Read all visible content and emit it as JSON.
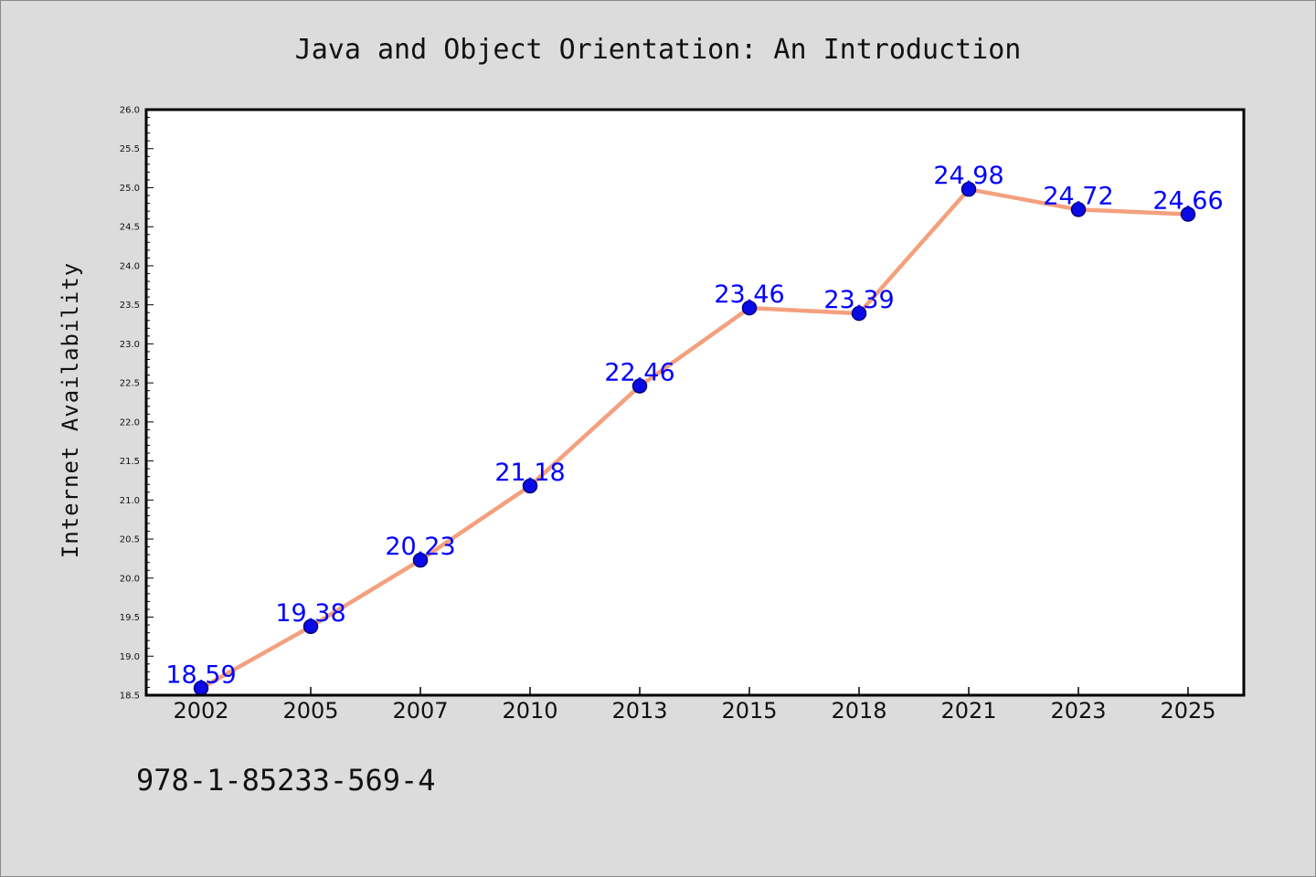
{
  "page": {
    "isbn": "978-1-85233-569-4"
  },
  "chart_data": {
    "type": "line",
    "title": "Java and Object Orientation: An Introduction",
    "xlabel": "",
    "ylabel": "Internet Availability",
    "categories": [
      "2002",
      "2005",
      "2007",
      "2010",
      "2013",
      "2015",
      "2018",
      "2021",
      "2023",
      "2025"
    ],
    "series": [
      {
        "values": [
          18.59,
          19.38,
          20.23,
          21.18,
          22.46,
          23.46,
          23.39,
          24.98,
          24.72,
          24.66
        ]
      }
    ],
    "data_labels": [
      "18.59",
      "19.38",
      "20.23",
      "21.18",
      "22.46",
      "23.46",
      "23.39",
      "24.98",
      "24.72",
      "24.66"
    ],
    "ylim": [
      18.5,
      26.0
    ],
    "yticks": [
      "18.5",
      "19.0",
      "19.5",
      "20.0",
      "20.5",
      "21.0",
      "21.5",
      "22.0",
      "22.5",
      "23.0",
      "23.5",
      "24.0",
      "24.5",
      "25.0",
      "25.5",
      "26.0"
    ],
    "grid": false,
    "legend": "none",
    "colors": {
      "line": "#f4a07e",
      "marker_fill": "#0a0ae6",
      "marker_edge": "#00007a",
      "data_label": "#0000ff",
      "plot_background": "#ffffff",
      "figure_background": "#dcdcdc"
    }
  }
}
